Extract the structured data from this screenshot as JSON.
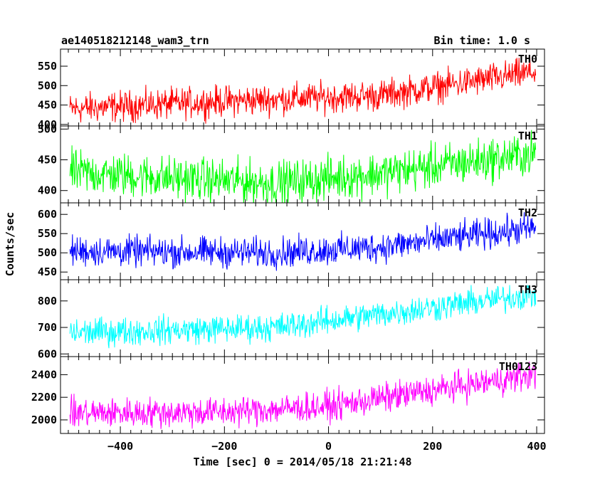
{
  "chart_data": {
    "type": "line",
    "title": "ae140518212148_wam3_trn",
    "bin_time_label": "Bin time: 1.0 s",
    "xlabel": "Time [sec] 0 = 2014/05/18 21:21:48",
    "ylabel": "Counts/sec",
    "xlim": [
      -515,
      415
    ],
    "x_ticks": [
      -400,
      -200,
      0,
      200,
      400
    ],
    "x_tick_labels": [
      "−400",
      "−200",
      "0",
      "200",
      "400"
    ],
    "x_range": [
      -497,
      398
    ],
    "grid": false,
    "panels": [
      {
        "name": "TH0",
        "color": "#ff0000",
        "ylim": [
          396,
          594
        ],
        "y_ticks": [
          400,
          450,
          500,
          550
        ],
        "y_tick_labels": [
          "400",
          "450",
          "500",
          "550"
        ],
        "trend": [
          [
            -497,
            440
          ],
          [
            -200,
            460
          ],
          [
            100,
            475
          ],
          [
            398,
            535
          ]
        ],
        "noise": 45
      },
      {
        "name": "TH1",
        "color": "#00ff00",
        "ylim": [
          380,
          505
        ],
        "y_ticks": [
          400,
          450,
          500
        ],
        "y_tick_labels": [
          "400",
          "450",
          "500"
        ],
        "trend": [
          [
            -497,
            430
          ],
          [
            -250,
            418
          ],
          [
            -100,
            412
          ],
          [
            100,
            428
          ],
          [
            398,
            460
          ]
        ],
        "noise": 40
      },
      {
        "name": "TH2",
        "color": "#0000ff",
        "ylim": [
          430,
          630
        ],
        "y_ticks": [
          450,
          500,
          550,
          600
        ],
        "y_tick_labels": [
          "450",
          "500",
          "550",
          "600"
        ],
        "trend": [
          [
            -497,
            505
          ],
          [
            -100,
            500
          ],
          [
            100,
            515
          ],
          [
            398,
            565
          ]
        ],
        "noise": 45
      },
      {
        "name": "TH3",
        "color": "#00ffff",
        "ylim": [
          590,
          880
        ],
        "y_ticks": [
          600,
          700,
          800
        ],
        "y_tick_labels": [
          "600",
          "700",
          "800"
        ],
        "trend": [
          [
            -497,
            680
          ],
          [
            -100,
            700
          ],
          [
            100,
            750
          ],
          [
            398,
            825
          ]
        ],
        "noise": 60
      },
      {
        "name": "TH0123",
        "color": "#ff00ff",
        "ylim": [
          1880,
          2560
        ],
        "y_ticks": [
          2000,
          2200,
          2400
        ],
        "y_tick_labels": [
          "2000",
          "2200",
          "2400"
        ],
        "trend": [
          [
            -497,
            2060
          ],
          [
            -200,
            2070
          ],
          [
            0,
            2120
          ],
          [
            398,
            2400
          ]
        ],
        "noise": 150
      }
    ]
  }
}
